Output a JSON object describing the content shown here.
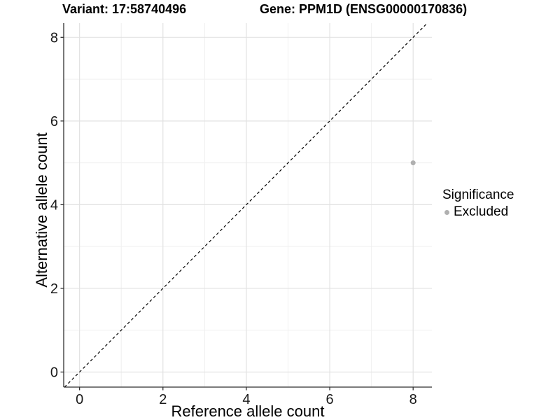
{
  "titles": {
    "variant": "Variant: 17:58740496",
    "gene": "Gene: PPM1D (ENSG00000170836)"
  },
  "chart_data": {
    "type": "scatter",
    "xlabel": "Reference allele count",
    "ylabel": "Alternative allele count",
    "xlim": [
      -0.38,
      8.45
    ],
    "ylim": [
      -0.36,
      8.34
    ],
    "x_ticks": [
      0,
      2,
      4,
      6,
      8
    ],
    "y_ticks": [
      0,
      2,
      4,
      6,
      8
    ],
    "x_minor_ticks": [
      1,
      3,
      5,
      7
    ],
    "y_minor_ticks": [
      1,
      3,
      5,
      7
    ],
    "grid": true,
    "points": [
      {
        "x": 8,
        "y": 5,
        "series": "Excluded"
      }
    ],
    "identity_line": {
      "slope": 1,
      "intercept": 0,
      "style": "dashed"
    },
    "legend": {
      "title": "Significance",
      "position": "right",
      "entries": [
        {
          "label": "Excluded",
          "color": "#b0b0b0"
        }
      ]
    }
  },
  "colors": {
    "background": "#ffffff",
    "point": "#b0b0b0",
    "grid_major": "#e2e2e2",
    "grid_minor": "#f0f0f0",
    "axis_line": "#2f2f2f",
    "tick_mark": "#333333",
    "tick_label": "#1a1a1a",
    "dashed_line": "#000000"
  }
}
